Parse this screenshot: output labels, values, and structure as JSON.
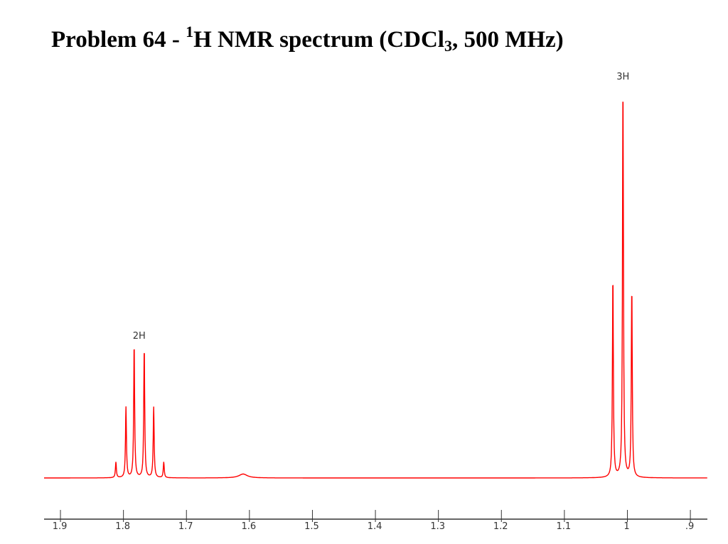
{
  "title": {
    "prefix": "Problem 64 - ",
    "sup": "1",
    "middle": "H NMR spectrum (CDCl",
    "sub": "3",
    "suffix": ", 500 MHz)"
  },
  "chart_data": {
    "type": "line",
    "title": "Problem 64 - 1H NMR spectrum (CDCl3, 500 MHz)",
    "xlabel": "",
    "ylabel": "",
    "x_reversed": true,
    "xlim": [
      1.926,
      0.873
    ],
    "ylim": [
      0,
      100
    ],
    "line_color": "#ff0000",
    "grid": false,
    "ticks": [
      1.9,
      1.8,
      1.7,
      1.6,
      1.5,
      1.4,
      1.3,
      1.2,
      1.1,
      1.0,
      0.9
    ],
    "tick_labels": [
      "1.9",
      "1.8",
      "1.7",
      "1.6",
      "1.5",
      "1.4",
      "1.3",
      "1.2",
      "1.1",
      "1",
      ".9"
    ],
    "peaks": [
      {
        "ppm": 1.812,
        "intensity": 4
      },
      {
        "ppm": 1.796,
        "intensity": 18
      },
      {
        "ppm": 1.783,
        "intensity": 34
      },
      {
        "ppm": 1.767,
        "intensity": 33
      },
      {
        "ppm": 1.752,
        "intensity": 18
      },
      {
        "ppm": 1.736,
        "intensity": 4
      },
      {
        "ppm": 1.61,
        "intensity": 1
      },
      {
        "ppm": 1.023,
        "intensity": 51
      },
      {
        "ppm": 1.007,
        "intensity": 100
      },
      {
        "ppm": 0.993,
        "intensity": 48
      }
    ],
    "annotations": [
      {
        "text": "2H",
        "ppm": 1.775
      },
      {
        "text": "3H",
        "ppm": 1.007
      }
    ]
  }
}
